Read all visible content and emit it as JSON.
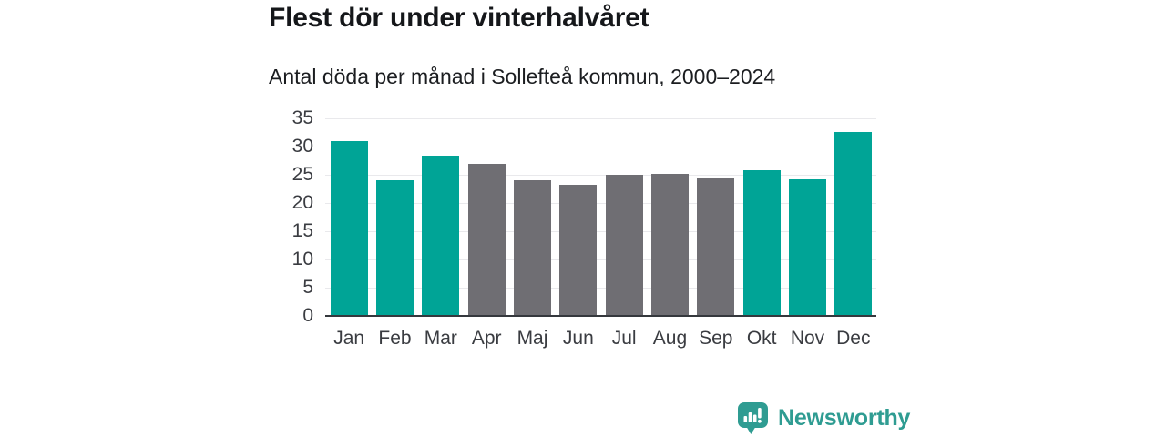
{
  "header": {
    "title": "Flest dör under vinterhalvåret",
    "subtitle": "Antal döda per månad i Sollefteå kommun, 2000–2024"
  },
  "chart_data": {
    "type": "bar",
    "title": "Flest dör under vinterhalvåret",
    "subtitle": "Antal döda per månad i Sollefteå kommun, 2000–2024",
    "categories": [
      "Jan",
      "Feb",
      "Mar",
      "Apr",
      "Maj",
      "Jun",
      "Jul",
      "Aug",
      "Sep",
      "Okt",
      "Nov",
      "Dec"
    ],
    "values": [
      31.0,
      24.0,
      28.4,
      26.9,
      24.0,
      23.2,
      25.0,
      25.2,
      24.5,
      25.8,
      24.2,
      32.6
    ],
    "bar_color_keys": [
      "teal",
      "teal",
      "teal",
      "gray",
      "gray",
      "gray",
      "gray",
      "gray",
      "gray",
      "teal",
      "teal",
      "teal"
    ],
    "xlabel": "",
    "ylabel": "",
    "ylim": [
      0,
      35
    ],
    "yticks": [
      0,
      5,
      10,
      15,
      20,
      25,
      30,
      35
    ],
    "grid": true,
    "legend": false
  },
  "colors": {
    "teal": "#00a496",
    "gray": "#6f6e73",
    "grid": "#e9e9ec",
    "axis_line": "#35383d",
    "tick_text": "#3a3c41",
    "logo": "#2f9c92"
  },
  "footer": {
    "brand": "Newsworthy",
    "logo_icon": "newsworthy-speech-bubble-bar-chart-icon"
  }
}
